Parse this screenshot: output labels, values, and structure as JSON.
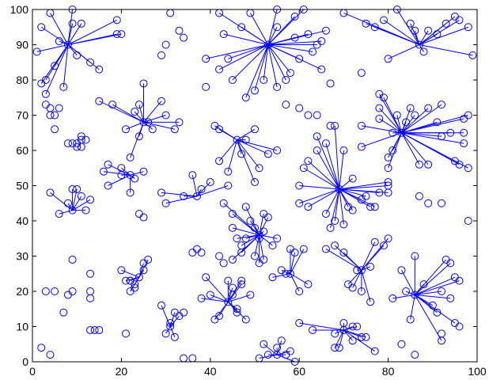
{
  "chart_data": {
    "type": "scatter",
    "title": "",
    "xlabel": "",
    "ylabel": "",
    "xlim": [
      0,
      100
    ],
    "ylim": [
      0,
      100
    ],
    "xticks": [
      0,
      20,
      40,
      60,
      80,
      100
    ],
    "yticks": [
      0,
      10,
      20,
      30,
      40,
      50,
      60,
      70,
      80,
      90,
      100
    ],
    "grid": false,
    "legend": "none",
    "marker": "circle-open",
    "color": "#0000ff",
    "clusters": [
      {
        "center": [
          8,
          90
        ],
        "points": [
          [
            2,
            95
          ],
          [
            4,
            99
          ],
          [
            1,
            88
          ],
          [
            3,
            80
          ],
          [
            5,
            84
          ],
          [
            6,
            91
          ],
          [
            9,
            96
          ],
          [
            10,
            87
          ],
          [
            13,
            85
          ],
          [
            15,
            83
          ],
          [
            19,
            97
          ],
          [
            20,
            93
          ],
          [
            19,
            93
          ],
          [
            11,
            96
          ],
          [
            7,
            78
          ],
          [
            3,
            76
          ],
          [
            2,
            79
          ],
          [
            9,
            100
          ]
        ]
      },
      {
        "center": [
          53,
          90
        ],
        "points": [
          [
            43,
            93
          ],
          [
            44,
            86
          ],
          [
            42,
            83
          ],
          [
            45,
            80
          ],
          [
            48,
            75
          ],
          [
            50,
            77
          ],
          [
            52,
            80
          ],
          [
            55,
            78
          ],
          [
            57,
            80
          ],
          [
            58,
            82
          ],
          [
            60,
            86
          ],
          [
            59,
            92
          ],
          [
            62,
            93
          ],
          [
            65,
            91
          ],
          [
            66,
            94
          ],
          [
            59,
            98
          ],
          [
            61,
            100
          ],
          [
            55,
            100
          ],
          [
            49,
            99
          ],
          [
            42,
            99
          ],
          [
            47,
            95
          ],
          [
            55,
            95
          ],
          [
            64,
            90
          ],
          [
            65,
            83
          ],
          [
            63,
            88
          ],
          [
            39,
            86
          ]
        ]
      },
      {
        "center": [
          87,
          90
        ],
        "points": [
          [
            70,
            99
          ],
          [
            75,
            96
          ],
          [
            79,
            97
          ],
          [
            82,
            100
          ],
          [
            85,
            96
          ],
          [
            86,
            94
          ],
          [
            89,
            94
          ],
          [
            91,
            93
          ],
          [
            93,
            96
          ],
          [
            95,
            98
          ],
          [
            96,
            97
          ],
          [
            98,
            95
          ],
          [
            99,
            87
          ],
          [
            88,
            88
          ],
          [
            80,
            86
          ],
          [
            77,
            95
          ]
        ]
      },
      {
        "center": [
          25,
          68
        ],
        "points": [
          [
            15,
            74
          ],
          [
            18,
            73
          ],
          [
            21,
            66
          ],
          [
            23,
            71
          ],
          [
            24,
            73
          ],
          [
            25,
            79
          ],
          [
            26,
            68
          ],
          [
            27,
            66
          ],
          [
            29,
            74
          ],
          [
            30,
            70
          ],
          [
            32,
            66
          ],
          [
            33,
            68
          ],
          [
            22,
            58
          ],
          [
            24,
            64
          ]
        ]
      },
      {
        "center": [
          46,
          63
        ],
        "points": [
          [
            41,
            67
          ],
          [
            42,
            66
          ],
          [
            42,
            57
          ],
          [
            44,
            54
          ],
          [
            47,
            59
          ],
          [
            50,
            51
          ],
          [
            51,
            55
          ],
          [
            53,
            59
          ],
          [
            55,
            60
          ],
          [
            50,
            66
          ],
          [
            48,
            63
          ]
        ]
      },
      {
        "center": [
          69,
          49
        ],
        "points": [
          [
            60,
            50
          ],
          [
            60,
            45
          ],
          [
            61,
            55
          ],
          [
            62,
            57
          ],
          [
            64,
            60
          ],
          [
            64,
            64
          ],
          [
            66,
            42
          ],
          [
            67,
            38
          ],
          [
            68,
            40
          ],
          [
            70,
            39
          ],
          [
            71,
            44
          ],
          [
            72,
            43
          ],
          [
            74,
            46
          ],
          [
            75,
            47
          ],
          [
            76,
            44
          ],
          [
            77,
            44
          ],
          [
            78,
            48
          ],
          [
            80,
            48
          ],
          [
            80,
            51
          ],
          [
            80,
            50
          ],
          [
            68,
            67
          ],
          [
            66,
            62
          ],
          [
            70,
            60
          ],
          [
            72,
            52
          ],
          [
            62,
            44
          ]
        ]
      },
      {
        "center": [
          83,
          65
        ],
        "points": [
          [
            74,
            67
          ],
          [
            74,
            61
          ],
          [
            78,
            72
          ],
          [
            78,
            76
          ],
          [
            79,
            75
          ],
          [
            80,
            58
          ],
          [
            80,
            55
          ],
          [
            81,
            60
          ],
          [
            81,
            65
          ],
          [
            82,
            70
          ],
          [
            84,
            68
          ],
          [
            85,
            72
          ],
          [
            86,
            70
          ],
          [
            87,
            56
          ],
          [
            89,
            56
          ],
          [
            89,
            72
          ],
          [
            91,
            68
          ],
          [
            92,
            73
          ],
          [
            92,
            64
          ],
          [
            94,
            65
          ],
          [
            95,
            57
          ],
          [
            97,
            62
          ],
          [
            97,
            65
          ],
          [
            97,
            69
          ],
          [
            98,
            70
          ],
          [
            98,
            55
          ],
          [
            96,
            56
          ],
          [
            78,
            69
          ]
        ]
      },
      {
        "center": [
          22,
          53
        ],
        "points": [
          [
            16,
            54
          ],
          [
            17,
            50
          ],
          [
            17,
            56
          ],
          [
            20,
            55
          ],
          [
            22,
            48
          ],
          [
            25,
            54
          ],
          [
            20,
            53
          ],
          [
            23,
            52
          ]
        ]
      },
      {
        "center": [
          9,
          43
        ],
        "points": [
          [
            4,
            48
          ],
          [
            6,
            42
          ],
          [
            8,
            45
          ],
          [
            9,
            49
          ],
          [
            10,
            49
          ],
          [
            12,
            43
          ],
          [
            13,
            46
          ],
          [
            11,
            47
          ]
        ]
      },
      {
        "center": [
          37,
          47
        ],
        "points": [
          [
            29,
            48
          ],
          [
            30,
            45
          ],
          [
            36,
            53
          ],
          [
            38,
            49
          ],
          [
            40,
            51
          ],
          [
            44,
            50
          ],
          [
            34,
            47
          ]
        ]
      },
      {
        "center": [
          51,
          36
        ],
        "points": [
          [
            43,
            45
          ],
          [
            45,
            42
          ],
          [
            45,
            38
          ],
          [
            46,
            35
          ],
          [
            47,
            33
          ],
          [
            48,
            35
          ],
          [
            49,
            40
          ],
          [
            50,
            38
          ],
          [
            51,
            35
          ],
          [
            52,
            37
          ],
          [
            52,
            42
          ],
          [
            53,
            41
          ],
          [
            54,
            33
          ],
          [
            55,
            35
          ],
          [
            50,
            30
          ],
          [
            51,
            28
          ],
          [
            47,
            31
          ],
          [
            45,
            29
          ],
          [
            48,
            44
          ],
          [
            52,
            29
          ]
        ]
      },
      {
        "center": [
          74,
          26
        ],
        "points": [
          [
            66,
            32
          ],
          [
            68,
            33
          ],
          [
            70,
            31
          ],
          [
            71,
            22
          ],
          [
            72,
            21
          ],
          [
            73,
            26
          ],
          [
            74,
            20
          ],
          [
            76,
            17
          ],
          [
            79,
            33
          ],
          [
            80,
            35
          ],
          [
            76,
            27
          ],
          [
            77,
            34
          ]
        ]
      },
      {
        "center": [
          58,
          25
        ],
        "points": [
          [
            54,
            24
          ],
          [
            57,
            25
          ],
          [
            58,
            32
          ],
          [
            59,
            31
          ],
          [
            60,
            20
          ],
          [
            61,
            32
          ],
          [
            62,
            22
          ],
          [
            56,
            26
          ]
        ]
      },
      {
        "center": [
          86,
          19
        ],
        "points": [
          [
            81,
            18
          ],
          [
            83,
            26
          ],
          [
            84,
            20
          ],
          [
            85,
            12
          ],
          [
            86,
            30
          ],
          [
            88,
            22
          ],
          [
            91,
            14
          ],
          [
            92,
            20
          ],
          [
            93,
            29
          ],
          [
            94,
            28
          ],
          [
            95,
            24
          ],
          [
            96,
            23
          ],
          [
            92,
            6
          ],
          [
            95,
            11
          ],
          [
            90,
            16
          ],
          [
            94,
            18
          ]
        ]
      },
      {
        "center": [
          44,
          17
        ],
        "points": [
          [
            38,
            18
          ],
          [
            39,
            24
          ],
          [
            40,
            19
          ],
          [
            41,
            12
          ],
          [
            42,
            13
          ],
          [
            44,
            23
          ],
          [
            45,
            21
          ],
          [
            46,
            15
          ],
          [
            46,
            14
          ],
          [
            47,
            23
          ],
          [
            47,
            22
          ],
          [
            48,
            12
          ],
          [
            49,
            19
          ],
          [
            45,
            19
          ]
        ]
      },
      {
        "center": [
          70,
          9
        ],
        "points": [
          [
            60,
            11
          ],
          [
            63,
            9
          ],
          [
            68,
            4
          ],
          [
            69,
            4
          ],
          [
            70,
            11
          ],
          [
            72,
            10
          ],
          [
            73,
            10
          ],
          [
            74,
            7
          ],
          [
            75,
            7
          ],
          [
            77,
            3
          ],
          [
            68,
            8
          ],
          [
            72,
            6
          ]
        ]
      },
      {
        "center": [
          24,
          24
        ],
        "points": [
          [
            20,
            26
          ],
          [
            21,
            23
          ],
          [
            22,
            20
          ],
          [
            22,
            23
          ],
          [
            25,
            26
          ],
          [
            26,
            29
          ],
          [
            25,
            28
          ],
          [
            23,
            22
          ]
        ]
      },
      {
        "center": [
          31,
          10
        ],
        "points": [
          [
            29,
            16
          ],
          [
            30,
            8
          ],
          [
            31,
            11
          ],
          [
            32,
            14
          ],
          [
            33,
            13
          ],
          [
            32,
            7
          ]
        ]
      },
      {
        "center": [
          55,
          2
        ],
        "points": [
          [
            52,
            5
          ],
          [
            53,
            2
          ],
          [
            55,
            4
          ],
          [
            57,
            2
          ],
          [
            58,
            3
          ],
          [
            59,
            0
          ],
          [
            51,
            1
          ],
          [
            56,
            6
          ]
        ]
      }
    ],
    "lone_points": [
      [
        8,
        62
      ],
      [
        9,
        62
      ],
      [
        10,
        62
      ],
      [
        11,
        63
      ],
      [
        11,
        64
      ],
      [
        12,
        63
      ],
      [
        10,
        61
      ],
      [
        11,
        61
      ],
      [
        3,
        20
      ],
      [
        5,
        20
      ],
      [
        7,
        14
      ],
      [
        8,
        19
      ],
      [
        9,
        20
      ],
      [
        9,
        29
      ],
      [
        13,
        18
      ],
      [
        13,
        20
      ],
      [
        13,
        25
      ],
      [
        13,
        9
      ],
      [
        14,
        9
      ],
      [
        15,
        9
      ],
      [
        21,
        8
      ],
      [
        22,
        23
      ],
      [
        23,
        21
      ],
      [
        2,
        4
      ],
      [
        4,
        2
      ],
      [
        34,
        1
      ],
      [
        36,
        1
      ],
      [
        34,
        14
      ],
      [
        37,
        32
      ],
      [
        38,
        31
      ],
      [
        36,
        31
      ],
      [
        42,
        30
      ],
      [
        43,
        28
      ],
      [
        29,
        87
      ],
      [
        30,
        90
      ],
      [
        31,
        99
      ],
      [
        33,
        94
      ],
      [
        34,
        92
      ],
      [
        39,
        78
      ],
      [
        24,
        42
      ],
      [
        25,
        41
      ],
      [
        64,
        70
      ],
      [
        67,
        67
      ],
      [
        74,
        82
      ],
      [
        67,
        79
      ],
      [
        60,
        72
      ],
      [
        62,
        70
      ],
      [
        57,
        73
      ],
      [
        98,
        40
      ],
      [
        87,
        47
      ],
      [
        89,
        45
      ],
      [
        92,
        45
      ],
      [
        3,
        73
      ],
      [
        4,
        70
      ],
      [
        5,
        70
      ],
      [
        5,
        66
      ],
      [
        6,
        72
      ],
      [
        4,
        72
      ],
      [
        83,
        5
      ],
      [
        86,
        2
      ],
      [
        92,
        8
      ],
      [
        96,
        10
      ]
    ]
  }
}
